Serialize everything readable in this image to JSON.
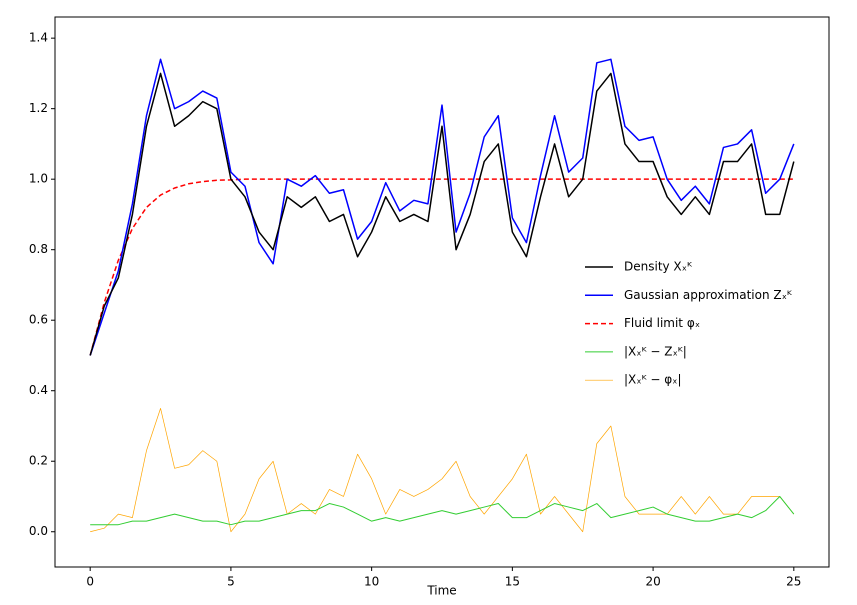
{
  "chart_data": {
    "type": "line",
    "xlabel": "Time",
    "x": [
      0,
      0.5,
      1,
      1.5,
      2,
      2.5,
      3,
      3.5,
      4,
      4.5,
      5,
      5.5,
      6,
      6.5,
      7,
      7.5,
      8,
      8.5,
      9,
      9.5,
      10,
      10.5,
      11,
      11.5,
      12,
      12.5,
      13,
      13.5,
      14,
      14.5,
      15,
      15.5,
      16,
      16.5,
      17,
      17.5,
      18,
      18.5,
      19,
      19.5,
      20,
      20.5,
      21,
      21.5,
      22,
      22.5,
      23,
      23.5,
      24,
      24.5,
      25
    ],
    "series": [
      {
        "name": "Density Xₓᴷ",
        "color": "#000000",
        "width": 1.5,
        "values": [
          0.5,
          0.64,
          0.72,
          0.9,
          1.15,
          1.3,
          1.15,
          1.18,
          1.22,
          1.2,
          1.0,
          0.95,
          0.85,
          0.8,
          0.95,
          0.92,
          0.95,
          0.88,
          0.9,
          0.78,
          0.85,
          0.95,
          0.88,
          0.9,
          0.88,
          1.15,
          0.8,
          0.9,
          1.05,
          1.1,
          0.85,
          0.78,
          0.95,
          1.1,
          0.95,
          1.0,
          1.25,
          1.3,
          1.1,
          1.05,
          1.05,
          0.95,
          0.9,
          0.95,
          0.9,
          1.05,
          1.05,
          1.1,
          0.9,
          0.9,
          1.05
        ]
      },
      {
        "name": "Gaussian approximation Zₓᴷ",
        "color": "#0000ff",
        "width": 1.5,
        "values": [
          0.5,
          0.62,
          0.74,
          0.93,
          1.18,
          1.34,
          1.2,
          1.22,
          1.25,
          1.23,
          1.02,
          0.98,
          0.82,
          0.76,
          1.0,
          0.98,
          1.01,
          0.96,
          0.97,
          0.83,
          0.88,
          0.99,
          0.91,
          0.94,
          0.93,
          1.21,
          0.85,
          0.96,
          1.12,
          1.18,
          0.89,
          0.82,
          1.01,
          1.18,
          1.02,
          1.06,
          1.33,
          1.34,
          1.15,
          1.11,
          1.12,
          1.0,
          0.94,
          0.98,
          0.93,
          1.09,
          1.1,
          1.14,
          0.96,
          1.0,
          1.1
        ]
      },
      {
        "name": "Fluid limit φₓ",
        "color": "#ff0000",
        "width": 1.5,
        "dashed": true,
        "values": [
          0.5,
          0.65,
          0.77,
          0.86,
          0.92,
          0.955,
          0.975,
          0.987,
          0.993,
          0.997,
          0.998,
          1,
          1,
          1,
          1,
          1,
          1,
          1,
          1,
          1,
          1,
          1,
          1,
          1,
          1,
          1,
          1,
          1,
          1,
          1,
          1,
          1,
          1,
          1,
          1,
          1,
          1,
          1,
          1,
          1,
          1,
          1,
          1,
          1,
          1,
          1,
          1,
          1,
          1,
          1,
          1
        ]
      },
      {
        "name": "|Xₓᴷ − Zₓᴷ|",
        "color": "#32cd32",
        "width": 1,
        "values": [
          0.02,
          0.02,
          0.02,
          0.03,
          0.03,
          0.04,
          0.05,
          0.04,
          0.03,
          0.03,
          0.02,
          0.03,
          0.03,
          0.04,
          0.05,
          0.06,
          0.06,
          0.08,
          0.07,
          0.05,
          0.03,
          0.04,
          0.03,
          0.04,
          0.05,
          0.06,
          0.05,
          0.06,
          0.07,
          0.08,
          0.04,
          0.04,
          0.06,
          0.08,
          0.07,
          0.06,
          0.08,
          0.04,
          0.05,
          0.06,
          0.07,
          0.05,
          0.04,
          0.03,
          0.03,
          0.04,
          0.05,
          0.04,
          0.06,
          0.1,
          0.05
        ]
      },
      {
        "name": "|Xₓᴷ − φₓ|",
        "color": "#ffa500",
        "width": 0.7,
        "values": [
          0,
          0.01,
          0.05,
          0.04,
          0.23,
          0.35,
          0.18,
          0.19,
          0.23,
          0.2,
          0,
          0.05,
          0.15,
          0.2,
          0.05,
          0.08,
          0.05,
          0.12,
          0.1,
          0.22,
          0.15,
          0.05,
          0.12,
          0.1,
          0.12,
          0.15,
          0.2,
          0.1,
          0.05,
          0.1,
          0.15,
          0.22,
          0.05,
          0.1,
          0.05,
          0,
          0.25,
          0.3,
          0.1,
          0.05,
          0.05,
          0.05,
          0.1,
          0.05,
          0.1,
          0.05,
          0.05,
          0.1,
          0.1,
          0.1,
          0.05
        ]
      }
    ],
    "xlim": [
      -1.25,
      26.25
    ],
    "ylim": [
      -0.1,
      1.46
    ],
    "xticks": [
      0,
      5,
      10,
      15,
      20,
      25
    ],
    "yticks": [
      {
        "value": 0,
        "label": "0.0"
      },
      {
        "value": 0.2,
        "label": "0.2"
      },
      {
        "value": 0.4,
        "label": "0.4"
      },
      {
        "value": 0.6,
        "label": "0.6"
      },
      {
        "value": 0.8,
        "label": "0.8"
      },
      {
        "value": 1,
        "label": "1.0"
      },
      {
        "value": 1.2,
        "label": "1.2"
      },
      {
        "value": 1.4,
        "label": "1.4"
      }
    ],
    "legend": "center right",
    "grid": false
  }
}
